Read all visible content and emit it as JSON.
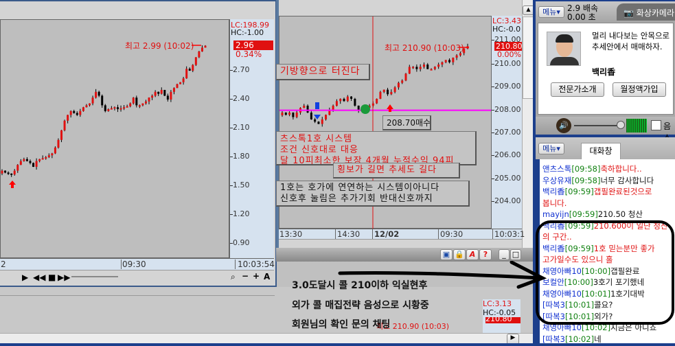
{
  "left_chart": {
    "lc": "LC:198.99",
    "hc": "HC:-1.00",
    "current": "2.96",
    "change": "0.34%",
    "high_note": "최고 2.99 (10:02)",
    "y_ticks": [
      "2.70",
      "2.40",
      "2.10",
      "1.80",
      "1.50",
      "1.20",
      "0.90"
    ],
    "y_tick_values": [
      2.7,
      2.4,
      2.1,
      1.8,
      1.5,
      1.2,
      0.9
    ],
    "time_labels": [
      "2",
      "09:30"
    ],
    "clock": "10:03:54",
    "closes": [
      1.66,
      1.64,
      1.63,
      1.62,
      1.66,
      1.72,
      1.76,
      1.78,
      1.76,
      1.74,
      1.7,
      1.76,
      1.78,
      1.79,
      1.8,
      1.82,
      1.84,
      1.9,
      1.98,
      2.08,
      2.18,
      2.24,
      2.28,
      2.26,
      2.24,
      2.28,
      2.32,
      2.34,
      2.36,
      2.42,
      2.48,
      2.44,
      2.34,
      2.28,
      2.3,
      2.31,
      2.32,
      2.3,
      2.31,
      2.32,
      2.33,
      2.36,
      2.42,
      2.34,
      2.34,
      2.36,
      2.38,
      2.42,
      2.44,
      2.48,
      2.46,
      2.5,
      2.44,
      2.4,
      2.48,
      2.52,
      2.56,
      2.58,
      2.62,
      2.72,
      2.7,
      2.76,
      2.84,
      2.9,
      2.94,
      2.96
    ]
  },
  "mid_chart": {
    "lc": "LC:3.43",
    "hc": "HC:-0.0",
    "current": "210.80",
    "change": "0.00%",
    "top_tick": "211.00",
    "high_note": "최고 210.90 (10:03)",
    "y_ticks": [
      "210.00",
      "209.00",
      "208.00",
      "207.00",
      "206.00",
      "205.00",
      "204.00"
    ],
    "y_tick_values": [
      210,
      209,
      208,
      207,
      206,
      205,
      204
    ],
    "time_labels": [
      "13:30",
      "14:30",
      "12/02",
      "09:30"
    ],
    "clock": "10:03:1",
    "closes": [
      207.9,
      207.8,
      207.9,
      207.7,
      207.9,
      208.1,
      208.2,
      207.9,
      207.6,
      207.5,
      207.4,
      207.6,
      207.8,
      208.0,
      208.2,
      208.4,
      208.5,
      208.4,
      208.6,
      208.5,
      208.2,
      208.0,
      208.0,
      208.1,
      208.2,
      208.3,
      208.5,
      208.8,
      208.9,
      208.7,
      208.8,
      209.0,
      209.2,
      209.3,
      209.6,
      209.9,
      209.9,
      209.8,
      209.9,
      210.0,
      209.8,
      209.8,
      209.9,
      210.0,
      210.1,
      210.2,
      210.1,
      210.3,
      210.4,
      210.5,
      210.7,
      210.8
    ],
    "support_price": 208.0,
    "buy_label": "208.70매수",
    "notes": [
      "기방향으로 터진다",
      "츠스톡1호 시스템",
      "조건 신호대로 대응",
      "달 10피최소한 보장 4개월 누적수익 94피",
      "횡보가 길면 추세도 길다",
      "1호는 호가에 연연하는 시스템이아니다",
      "신호후 눌림은 추가기회 반대신호까지"
    ]
  },
  "lower_panel": {
    "lines": [
      "3.0도달시 콜 210이하 익실현후",
      "외가 콜 매집전략 음성으로 시황중",
      "회원님의 확인 문의 채팅"
    ],
    "mini_lc": "LC:3.13",
    "mini_hc": "HC:-0.05",
    "mini_note": "최고 210.90 (10:03)",
    "mini_price": "210.80"
  },
  "right_panel": {
    "menu": "메뉴",
    "speed": "2.9 배속",
    "time": "0.00 초",
    "camera_tab": "화상카메라",
    "expert_message": "멀리 내다보는 안목으로 추세안에서 매매하자.",
    "expert_name": "백리香",
    "intro_button": "전문가소개",
    "subscribe_button": "월정액가입",
    "mute_label": "음소",
    "chat_menu": "메뉴",
    "chat_tab": "대화창",
    "chat": [
      {
        "name": "앤츠스톡",
        "time": "[09:58]",
        "msg": "축하합니다..",
        "color": "r"
      },
      {
        "name": "우상유재",
        "time": "[09:58]",
        "msg": "너무 감사합니다",
        "color": "k"
      },
      {
        "name": "백리香",
        "time": "[09:59]",
        "msg": "갭필완료된것으로",
        "color": "r"
      },
      {
        "name": "",
        "time": "",
        "msg": "봅니다.",
        "color": "r"
      },
      {
        "name": "mayijn",
        "time": "[09:59]",
        "msg": "210.50 청산",
        "color": "k"
      },
      {
        "name": "백리香",
        "time": "[09:59]",
        "msg": "210.600이 일단 청산",
        "color": "r"
      },
      {
        "name": "",
        "time": "",
        "msg": "의 구간..",
        "color": "r"
      },
      {
        "name": "백리香",
        "time": "[09:59]",
        "msg": "1호 믿는분만 좋가",
        "color": "r"
      },
      {
        "name": "",
        "time": "",
        "msg": "고가일수도 있으니 홀",
        "color": "r"
      },
      {
        "name": "채영아빠10",
        "time": "[10:00]",
        "msg": "갭필완료",
        "color": "k"
      },
      {
        "name": "보컬안",
        "time": "[10:00]",
        "msg": "3호기 포기했네",
        "color": "k"
      },
      {
        "name": "채영아빠10",
        "time": "[10:01]",
        "msg": "1호기대박",
        "color": "k"
      },
      {
        "name": "[따복3",
        "time": "[10:01]",
        "msg": "콜요?",
        "color": "k"
      },
      {
        "name": "[따복3",
        "time": "[10:01]",
        "msg": "외가?",
        "color": "k"
      },
      {
        "name": "채영아빠10",
        "time": "[10:02]",
        "msg": "지금은 아니죠",
        "color": "k"
      },
      {
        "name": "[따복3",
        "time": "[10:02]",
        "msg": "네",
        "color": "k"
      }
    ]
  },
  "colors": {
    "up": "#e01010",
    "down": "#000000",
    "support": "#ff00ff",
    "axis_bg": "#d6e2ef",
    "frame": "#1c3f8c"
  }
}
